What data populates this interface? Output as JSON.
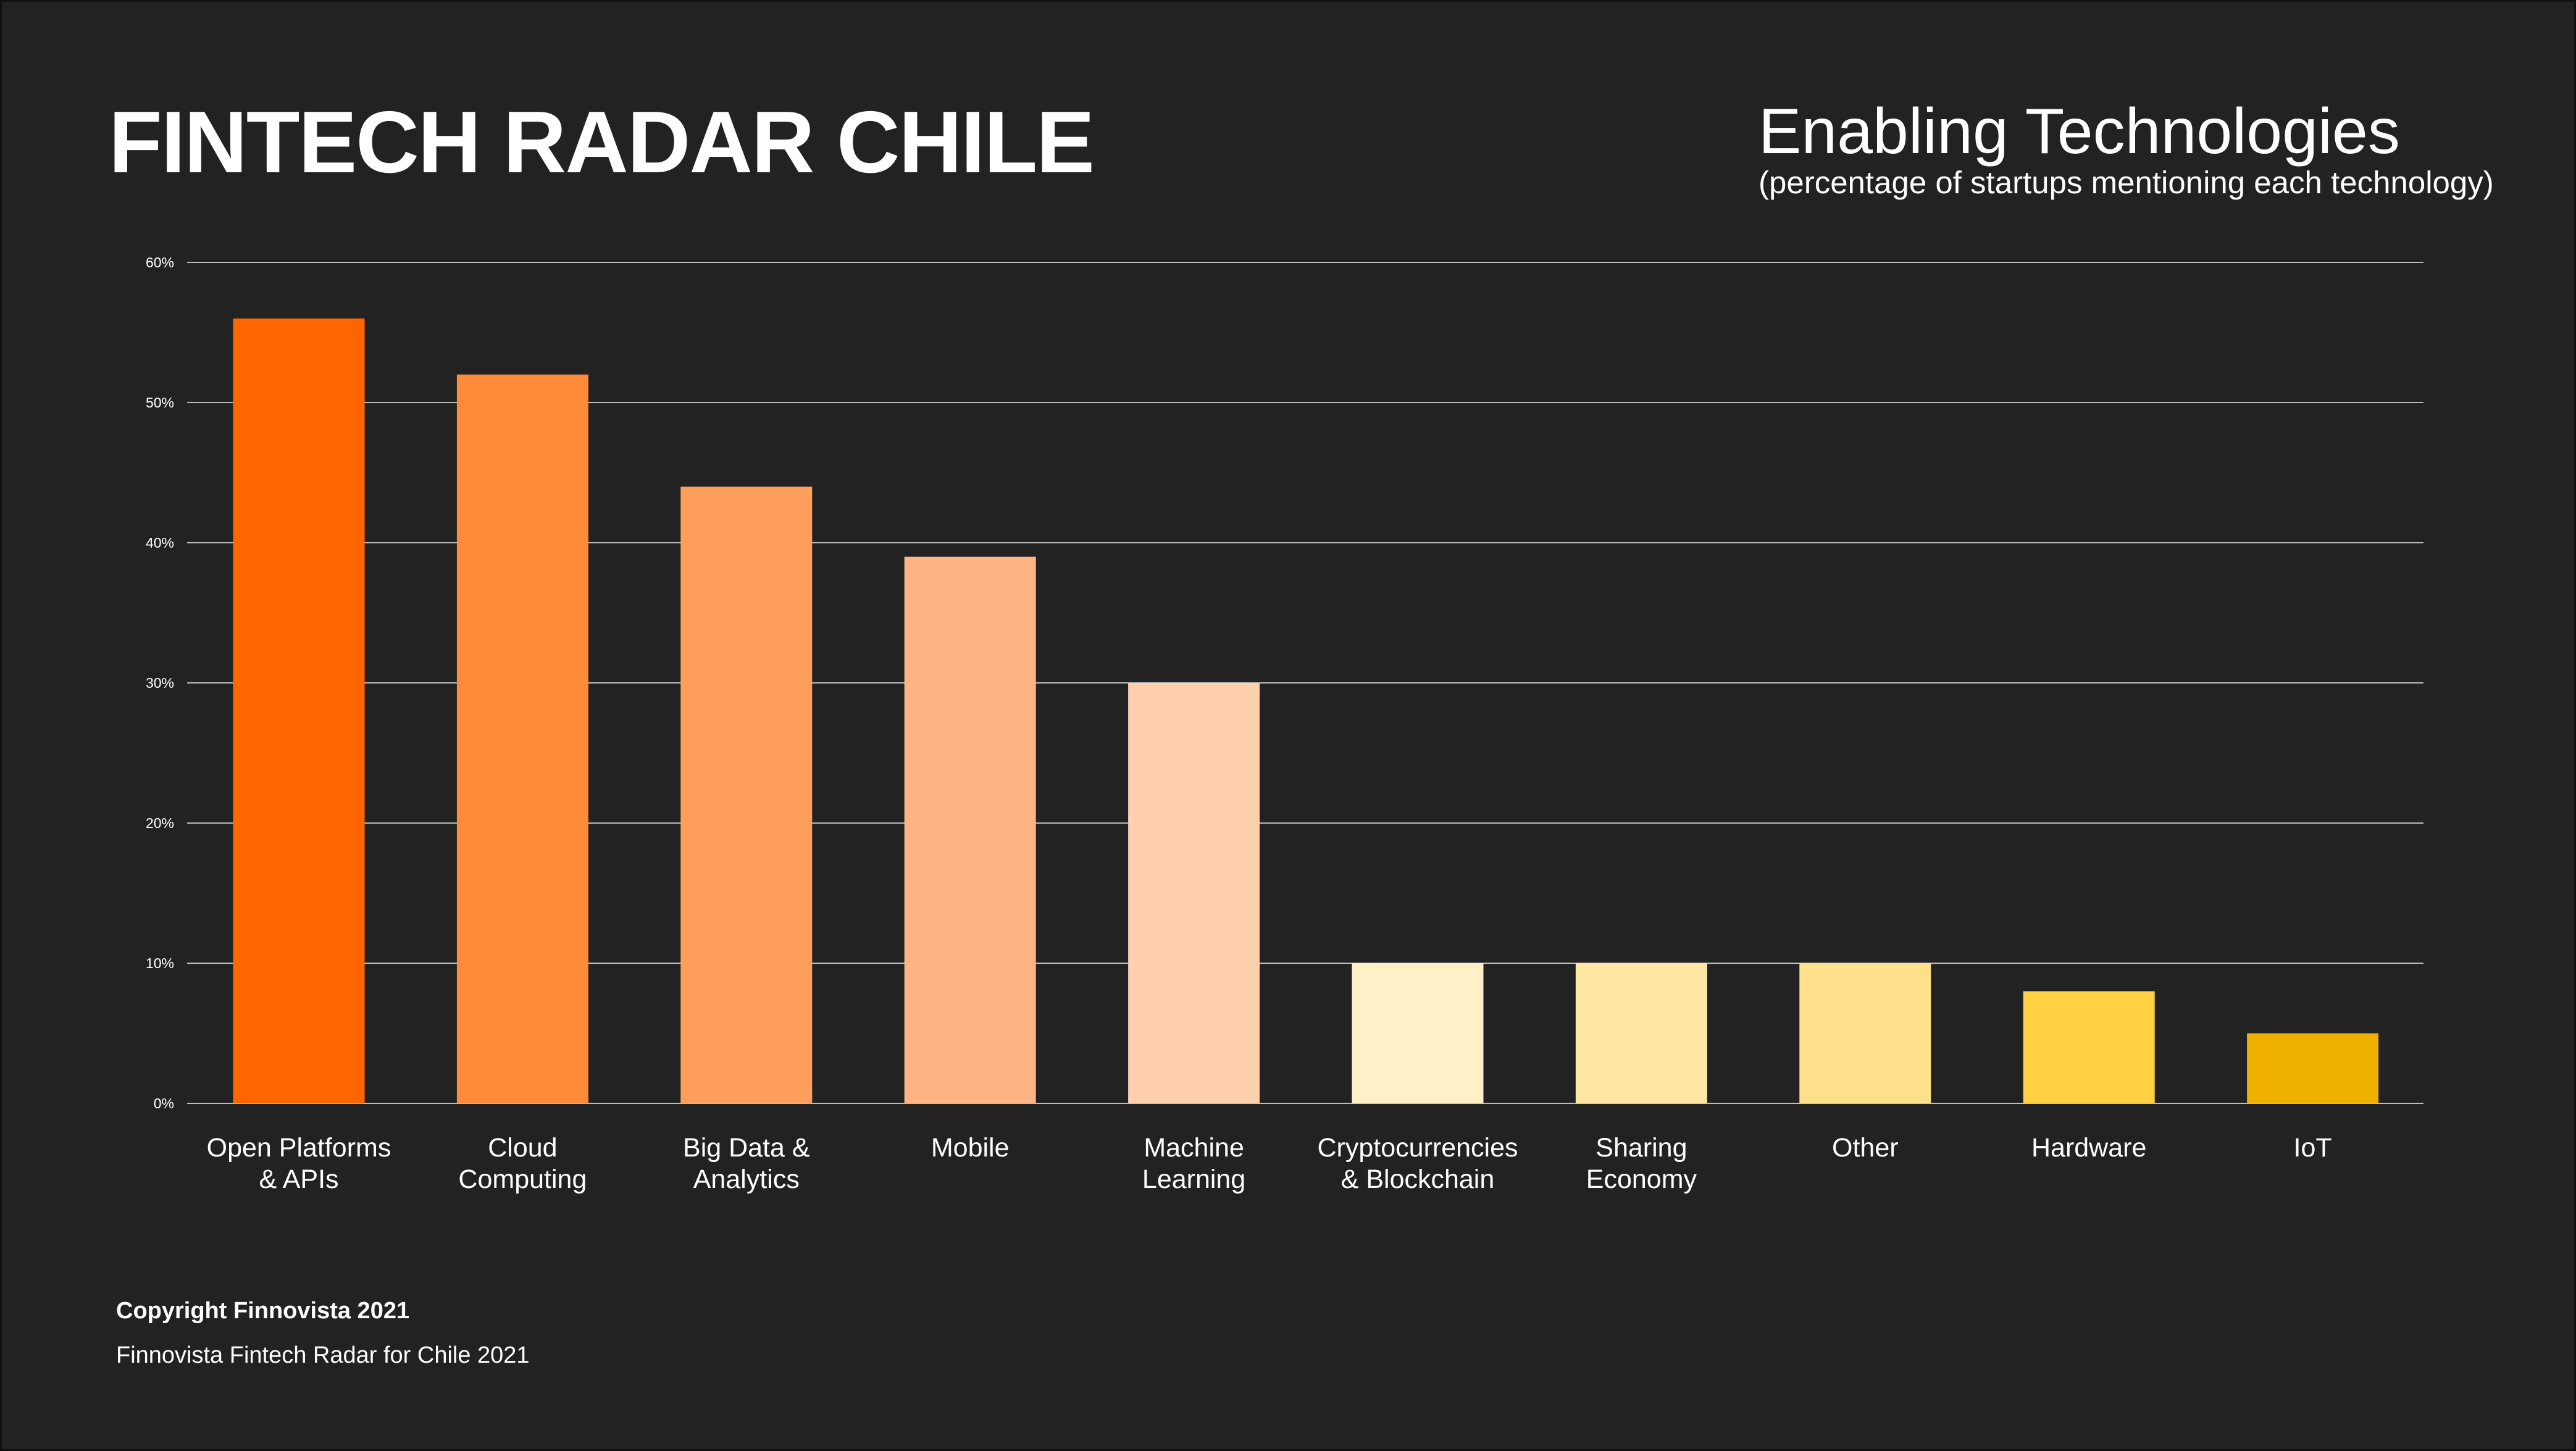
{
  "header": {
    "title": "FINTECH RADAR CHILE",
    "chart_title": "Enabling Technologies",
    "chart_subtitle": "(percentage of startups mentioning each technology)"
  },
  "footer": {
    "copyright": "Copyright Finnovista 2021",
    "source": "Finnovista Fintech Radar for Chile 2021"
  },
  "chart_data": {
    "type": "bar",
    "title": "Enabling Technologies",
    "subtitle": "(percentage of startups mentioning each technology)",
    "categories": [
      [
        "Open Platforms",
        "& APIs"
      ],
      [
        "Cloud",
        "Computing"
      ],
      [
        "Big Data &",
        "Analytics"
      ],
      [
        "Mobile"
      ],
      [
        "Machine",
        "Learning"
      ],
      [
        "Cryptocurrencies",
        "& Blockchain"
      ],
      [
        "Sharing",
        "Economy"
      ],
      [
        "Other"
      ],
      [
        "Hardware"
      ],
      [
        "IoT"
      ]
    ],
    "values": [
      56,
      52,
      44,
      39,
      30,
      10,
      10,
      10,
      8,
      5
    ],
    "colors": [
      "#ff6600",
      "#ff8b3a",
      "#ff9f5d",
      "#ffb486",
      "#ffd0ae",
      "#fff0c8",
      "#ffe6a3",
      "#ffe08a",
      "#ffd042",
      "#f0b000"
    ],
    "yticks": [
      "0%",
      "10%",
      "20%",
      "30%",
      "40%",
      "50%",
      "60%"
    ],
    "ylim": [
      0,
      60
    ],
    "grid": true,
    "xlabel": "",
    "ylabel": ""
  }
}
